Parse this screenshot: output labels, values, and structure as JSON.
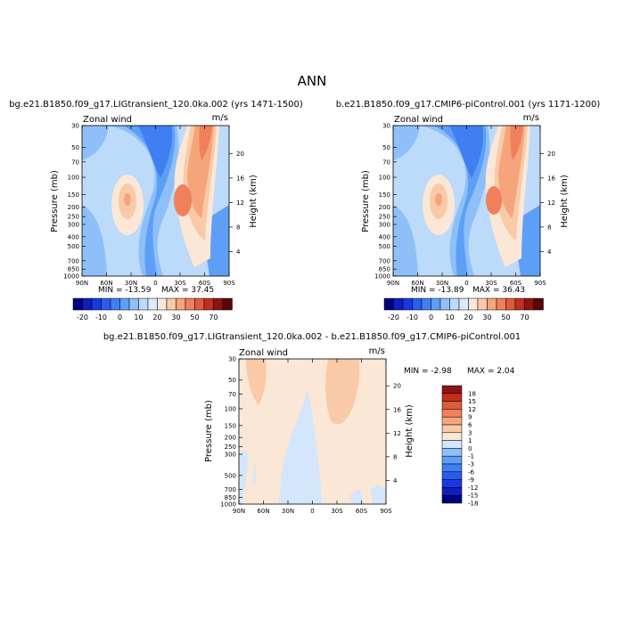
{
  "figure_title": "ANN",
  "colors": {
    "panel_scale": [
      "#00007f",
      "#0f1fbe",
      "#1a37e6",
      "#2a5ced",
      "#3f7ff2",
      "#5d9ff6",
      "#8ebff8",
      "#bcdaf9",
      "#dcebfb",
      "#fbe7d6",
      "#f9c9a8",
      "#f5a47c",
      "#f0805b",
      "#e05a3c",
      "#c1301f",
      "#8d1412",
      "#5a0505"
    ],
    "diff_scale": [
      "#00007f",
      "#0f1fbe",
      "#1a37e6",
      "#2a5ced",
      "#3f7ff2",
      "#5d9ff6",
      "#8ebff8",
      "#d4e6fb",
      "#fbe7d6",
      "#f9c9a8",
      "#f5a47c",
      "#f0805b",
      "#e05a3c",
      "#c1301f",
      "#8d1412"
    ]
  },
  "chart_data": [
    {
      "type": "heatmap",
      "title": "bg.e21.B1850.f09_g17.LIGtransient_120.0ka.002 (yrs 1471-1500)",
      "left_label": "Zonal wind",
      "right_label": "m/s",
      "xlabel": "",
      "ylabel": "Pressure (mb)",
      "y2label": "Height (km)",
      "x_ticks": [
        "90N",
        "60N",
        "30N",
        "0",
        "30S",
        "60S",
        "90S"
      ],
      "y_ticks": [
        "30",
        "50",
        "70",
        "100",
        "150",
        "200",
        "250",
        "300",
        "400",
        "500",
        "700",
        "850",
        "1000"
      ],
      "y2_ticks": [
        "20",
        "16",
        "12",
        "8",
        "4"
      ],
      "min_label": "MIN = -13.59",
      "max_label": "MAX = 37.45",
      "colorbar_labels": [
        "-20",
        "-10",
        "0",
        "10",
        "20",
        "30",
        "50",
        "70"
      ]
    },
    {
      "type": "heatmap",
      "title": "b.e21.B1850.f09_g17.CMIP6-piControl.001 (yrs 1171-1200)",
      "left_label": "Zonal wind",
      "right_label": "m/s",
      "xlabel": "",
      "ylabel": "Pressure (mb)",
      "y2label": "Height (km)",
      "x_ticks": [
        "90N",
        "60N",
        "30N",
        "0",
        "30S",
        "60S",
        "90S"
      ],
      "y_ticks": [
        "30",
        "50",
        "70",
        "100",
        "150",
        "200",
        "250",
        "300",
        "400",
        "500",
        "700",
        "850",
        "1000"
      ],
      "y2_ticks": [
        "20",
        "16",
        "12",
        "8",
        "4"
      ],
      "min_label": "MIN = -13.89",
      "max_label": "MAX = 36.43",
      "colorbar_labels": [
        "-20",
        "-10",
        "0",
        "10",
        "20",
        "30",
        "50",
        "70"
      ]
    },
    {
      "type": "heatmap",
      "title": "bg.e21.B1850.f09_g17.LIGtransient_120.0ka.002 - b.e21.B1850.f09_g17.CMIP6-piControl.001",
      "left_label": "Zonal wind",
      "right_label": "m/s",
      "xlabel": "",
      "ylabel": "Pressure (mb)",
      "y2label": "Height (km)",
      "x_ticks": [
        "90N",
        "60N",
        "30N",
        "0",
        "30S",
        "60S",
        "90S"
      ],
      "y_ticks": [
        "30",
        "50",
        "70",
        "100",
        "150",
        "200",
        "250",
        "300",
        "500",
        "700",
        "850",
        "1000"
      ],
      "y2_ticks": [
        "20",
        "16",
        "12",
        "8",
        "4"
      ],
      "min_label": "MIN =  -2.98",
      "max_label": "MAX =   2.04",
      "colorbar_labels": [
        "18",
        "15",
        "12",
        "9",
        "6",
        "3",
        "1",
        "0",
        "-1",
        "-3",
        "-6",
        "-9",
        "-12",
        "-15",
        "-18"
      ]
    }
  ]
}
